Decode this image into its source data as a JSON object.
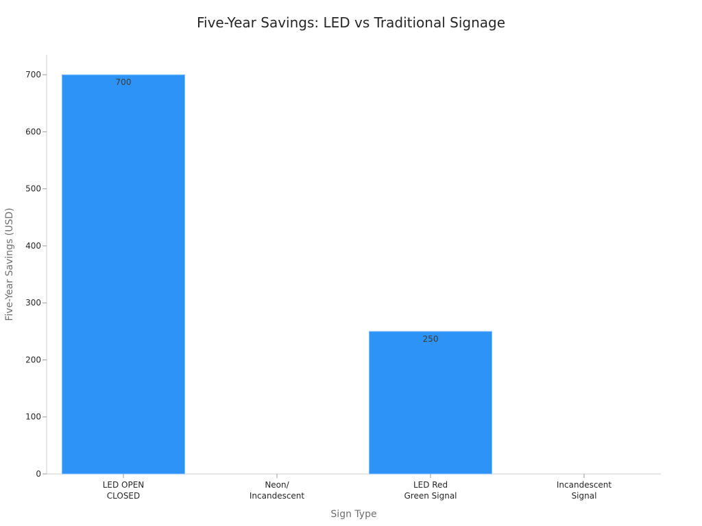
{
  "chart_data": {
    "type": "bar",
    "title": "Five-Year Savings: LED vs Traditional Signage",
    "xlabel": "Sign Type",
    "ylabel": "Five-Year Savings (USD)",
    "categories": [
      [
        "LED OPEN",
        "CLOSED"
      ],
      [
        "Neon/",
        "Incandescent"
      ],
      [
        "LED Red",
        "Green Signal"
      ],
      [
        "Incandescent",
        "Signal"
      ]
    ],
    "values": [
      700,
      0,
      250,
      0
    ],
    "data_labels": [
      "700",
      "",
      "250",
      ""
    ],
    "ylim": [
      0,
      735
    ],
    "yticks": [
      0,
      100,
      200,
      300,
      400,
      500,
      600,
      700
    ],
    "grid": false,
    "legend": "none",
    "colors": {
      "bar": "#2e93f7",
      "bar_edge": "#8fc6fb"
    }
  }
}
